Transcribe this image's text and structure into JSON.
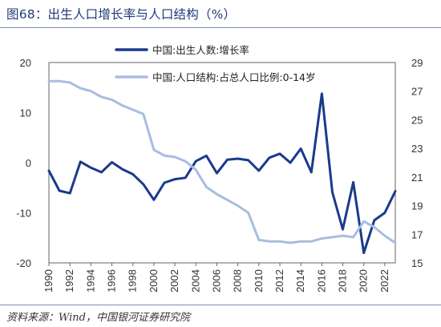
{
  "header": {
    "title": "图68：出生人口增长率与人口结构（%）"
  },
  "footer": {
    "source": "资料来源：Wind，中国银河证券研究院"
  },
  "chart_data": {
    "type": "line",
    "x": [
      1990,
      1991,
      1992,
      1993,
      1994,
      1995,
      1996,
      1997,
      1998,
      1999,
      2000,
      2001,
      2002,
      2003,
      2004,
      2005,
      2006,
      2007,
      2008,
      2009,
      2010,
      2011,
      2012,
      2013,
      2014,
      2015,
      2016,
      2017,
      2018,
      2019,
      2020,
      2021,
      2022,
      2023
    ],
    "xticks": [
      1990,
      1992,
      1994,
      1996,
      1998,
      2000,
      2002,
      2004,
      2006,
      2008,
      2010,
      2012,
      2014,
      2016,
      2018,
      2020,
      2022
    ],
    "y_left": {
      "lim": [
        -20,
        20
      ],
      "ticks": [
        20,
        10,
        0,
        -10,
        -20
      ]
    },
    "y_right": {
      "lim": [
        15,
        29
      ],
      "ticks": [
        29,
        27,
        25,
        23,
        21,
        19,
        17,
        15
      ]
    },
    "colors": {
      "series1": "#1a3a8c",
      "series2": "#a8bde0"
    },
    "legend_position": "top-center",
    "series": [
      {
        "name": "中国:出生人数:增长率",
        "axis": "left",
        "values": [
          -1.6,
          -5.6,
          -6.1,
          0.2,
          -1.0,
          -1.9,
          0.1,
          -1.3,
          -2.3,
          -4.3,
          -7.4,
          -4.0,
          -3.3,
          -3.0,
          0.3,
          1.4,
          -2.1,
          0.6,
          0.8,
          0.5,
          -1.6,
          1.0,
          1.8,
          0.0,
          2.8,
          -1.9,
          13.8,
          -5.9,
          -13.3,
          -3.9,
          -18.0,
          -11.5,
          -10.0,
          -5.7
        ]
      },
      {
        "name": "中国:人口结构:占总人口比例:0-14岁",
        "axis": "right",
        "values": [
          27.7,
          27.7,
          27.6,
          27.2,
          27.0,
          26.6,
          26.4,
          26.0,
          25.7,
          25.4,
          22.9,
          22.5,
          22.4,
          22.1,
          21.5,
          20.3,
          19.8,
          19.4,
          19.0,
          18.5,
          16.6,
          16.5,
          16.5,
          16.4,
          16.5,
          16.5,
          16.7,
          16.8,
          16.9,
          16.8,
          17.9,
          17.5,
          16.9,
          16.4
        ]
      }
    ]
  }
}
